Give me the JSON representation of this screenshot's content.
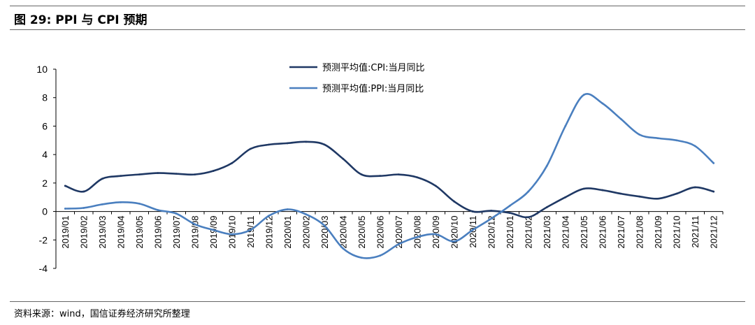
{
  "figure": {
    "title": "图 29:  PPI 与 CPI 预期",
    "source": "资料来源：wind，国信证券经济研究所整理"
  },
  "chart_data": {
    "type": "line",
    "title": "",
    "xlabel": "",
    "ylabel": "",
    "ylim": [
      -4,
      10
    ],
    "yticks": [
      -4,
      -2,
      0,
      2,
      4,
      6,
      8,
      10
    ],
    "grid": false,
    "legend_position": "top-center",
    "categories": [
      "2019/01",
      "2019/02",
      "2019/03",
      "2019/04",
      "2019/05",
      "2019/06",
      "2019/07",
      "2019/08",
      "2019/09",
      "2019/10",
      "2019/11",
      "2019/12",
      "2020/01",
      "2020/02",
      "2020/03",
      "2020/04",
      "2020/05",
      "2020/06",
      "2020/07",
      "2020/08",
      "2020/09",
      "2020/10",
      "2020/11",
      "2020/12",
      "2021/01",
      "2021/02",
      "2021/03",
      "2021/04",
      "2021/05",
      "2021/06",
      "2021/07",
      "2021/08",
      "2021/09",
      "2021/10",
      "2021/11",
      "2021/12"
    ],
    "series": [
      {
        "name": "预测平均值:CPI:当月同比",
        "color": "#1f3864",
        "values": [
          1.8,
          1.4,
          2.3,
          2.5,
          2.6,
          2.7,
          2.65,
          2.6,
          2.85,
          3.4,
          4.4,
          4.7,
          4.8,
          4.9,
          4.7,
          3.7,
          2.6,
          2.5,
          2.6,
          2.4,
          1.8,
          0.7,
          0.0,
          0.05,
          -0.1,
          -0.4,
          0.3,
          1.0,
          1.6,
          1.5,
          1.25,
          1.05,
          0.9,
          1.25,
          1.7,
          1.4
        ]
      },
      {
        "name": "预测平均值:PPI:当月同比",
        "color": "#4a7fbf",
        "values": [
          0.2,
          0.25,
          0.5,
          0.65,
          0.55,
          0.1,
          -0.15,
          -0.9,
          -1.3,
          -1.6,
          -1.3,
          -0.3,
          0.15,
          -0.2,
          -1.0,
          -2.6,
          -3.25,
          -3.1,
          -2.3,
          -1.8,
          -1.6,
          -2.1,
          -1.3,
          -0.5,
          0.4,
          1.4,
          3.2,
          6.0,
          8.2,
          7.6,
          6.5,
          5.4,
          5.15,
          5.0,
          4.6,
          3.4
        ]
      }
    ]
  }
}
